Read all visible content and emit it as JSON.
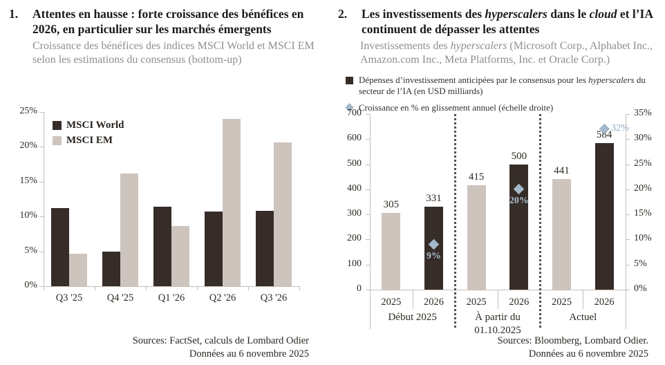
{
  "colors": {
    "dark_bar": "#362c28",
    "light_bar": "#cdc4be",
    "diamond": "#a3b8c9",
    "growth_label_on_dark": "#a9bdcc",
    "growth_label_above": "#8fa7bd",
    "axis_line": "#c6beb7",
    "separator_dots": "#554f49",
    "chart_text": "#2e2922"
  },
  "left_panel": {
    "number": "1.",
    "title": "Attentes en hausse : forte croissance des bénéfices en 2026, en particulier sur les marchés émergents",
    "subtitle": "Croissance des bénéfices des indices MSCI World et MSCI EM selon les estimations du consensus (bottom-up)",
    "sources_line1": "Sources: FactSet, calculs de Lombard Odier",
    "sources_line2": "Données au 6 novembre 2025"
  },
  "right_panel": {
    "number": "2.",
    "title_segments": [
      {
        "text": "Les investissements des "
      },
      {
        "text": "hyperscalers",
        "italic": true
      },
      {
        "text": " dans le "
      },
      {
        "text": "cloud",
        "italic": true
      },
      {
        "text": " et l’IA continuent de dépasser les attentes"
      }
    ],
    "subtitle_segments": [
      {
        "text": "Investissements des "
      },
      {
        "text": "hyperscalers",
        "italic": true
      },
      {
        "text": " (Microsoft Corp., Alphabet Inc., Amazon.com Inc., Meta Platforms, Inc. et Oracle Corp.)"
      }
    ],
    "legend_capex_segments": [
      {
        "text": "Dépenses d’investissement anticipées par le consensus pour les "
      },
      {
        "text": "hyperscalers",
        "italic": true
      },
      {
        "text": " du secteur de l’IA (en USD milliards)"
      }
    ],
    "legend_growth": "Croissance en % en glissement annuel (échelle droite)",
    "sources_line1": "Sources: Bloomberg, Lombard Odier.",
    "sources_line2": "Données au 6 novembre 2025"
  },
  "chart_data": [
    {
      "type": "bar",
      "title": "Croissance des bénéfices des indices MSCI World et MSCI EM selon les estimations du consensus (bottom-up)",
      "categories": [
        "Q3 '25",
        "Q4 '25",
        "Q1 '26",
        "Q2 '26",
        "Q3 '26"
      ],
      "series": [
        {
          "name": "MSCI World",
          "color_key": "dark_bar",
          "values": [
            11.2,
            5.0,
            11.4,
            10.7,
            10.8
          ]
        },
        {
          "name": "MSCI EM",
          "color_key": "light_bar",
          "values": [
            4.7,
            16.2,
            8.6,
            24.0,
            20.6
          ]
        }
      ],
      "unit": "%",
      "ylim": [
        0,
        25
      ],
      "ytick_step": 5,
      "grid": false,
      "legend_position": "top-left"
    },
    {
      "type": "bar",
      "secondary_type": "scatter",
      "title": "Investissements des hyperscalers (en USD milliards) et croissance en % en glissement annuel (échelle droite)",
      "groups": [
        {
          "label": "Début 2025",
          "bars": [
            {
              "category": "2025",
              "value": 305,
              "color_key": "light_bar"
            },
            {
              "category": "2026",
              "value": 331,
              "color_key": "dark_bar"
            }
          ],
          "growth_pct": 9,
          "growth_label": "9%",
          "growth_label_pos": "below-inside"
        },
        {
          "label": "À partir du 01.10.2025",
          "bars": [
            {
              "category": "2025",
              "value": 415,
              "color_key": "light_bar"
            },
            {
              "category": "2026",
              "value": 500,
              "color_key": "dark_bar"
            }
          ],
          "growth_pct": 20,
          "growth_label": "20%",
          "growth_label_pos": "below-inside"
        },
        {
          "label": "Actuel",
          "bars": [
            {
              "category": "2025",
              "value": 441,
              "color_key": "light_bar"
            },
            {
              "category": "2026",
              "value": 584,
              "color_key": "dark_bar"
            }
          ],
          "growth_pct": 32,
          "growth_label": "32%",
          "growth_label_pos": "right-above"
        }
      ],
      "ylim_left": [
        0,
        700
      ],
      "ytick_step_left": 100,
      "ylim_right_pct": [
        0,
        35
      ],
      "ytick_step_right_pct": 5,
      "grid": false
    }
  ]
}
